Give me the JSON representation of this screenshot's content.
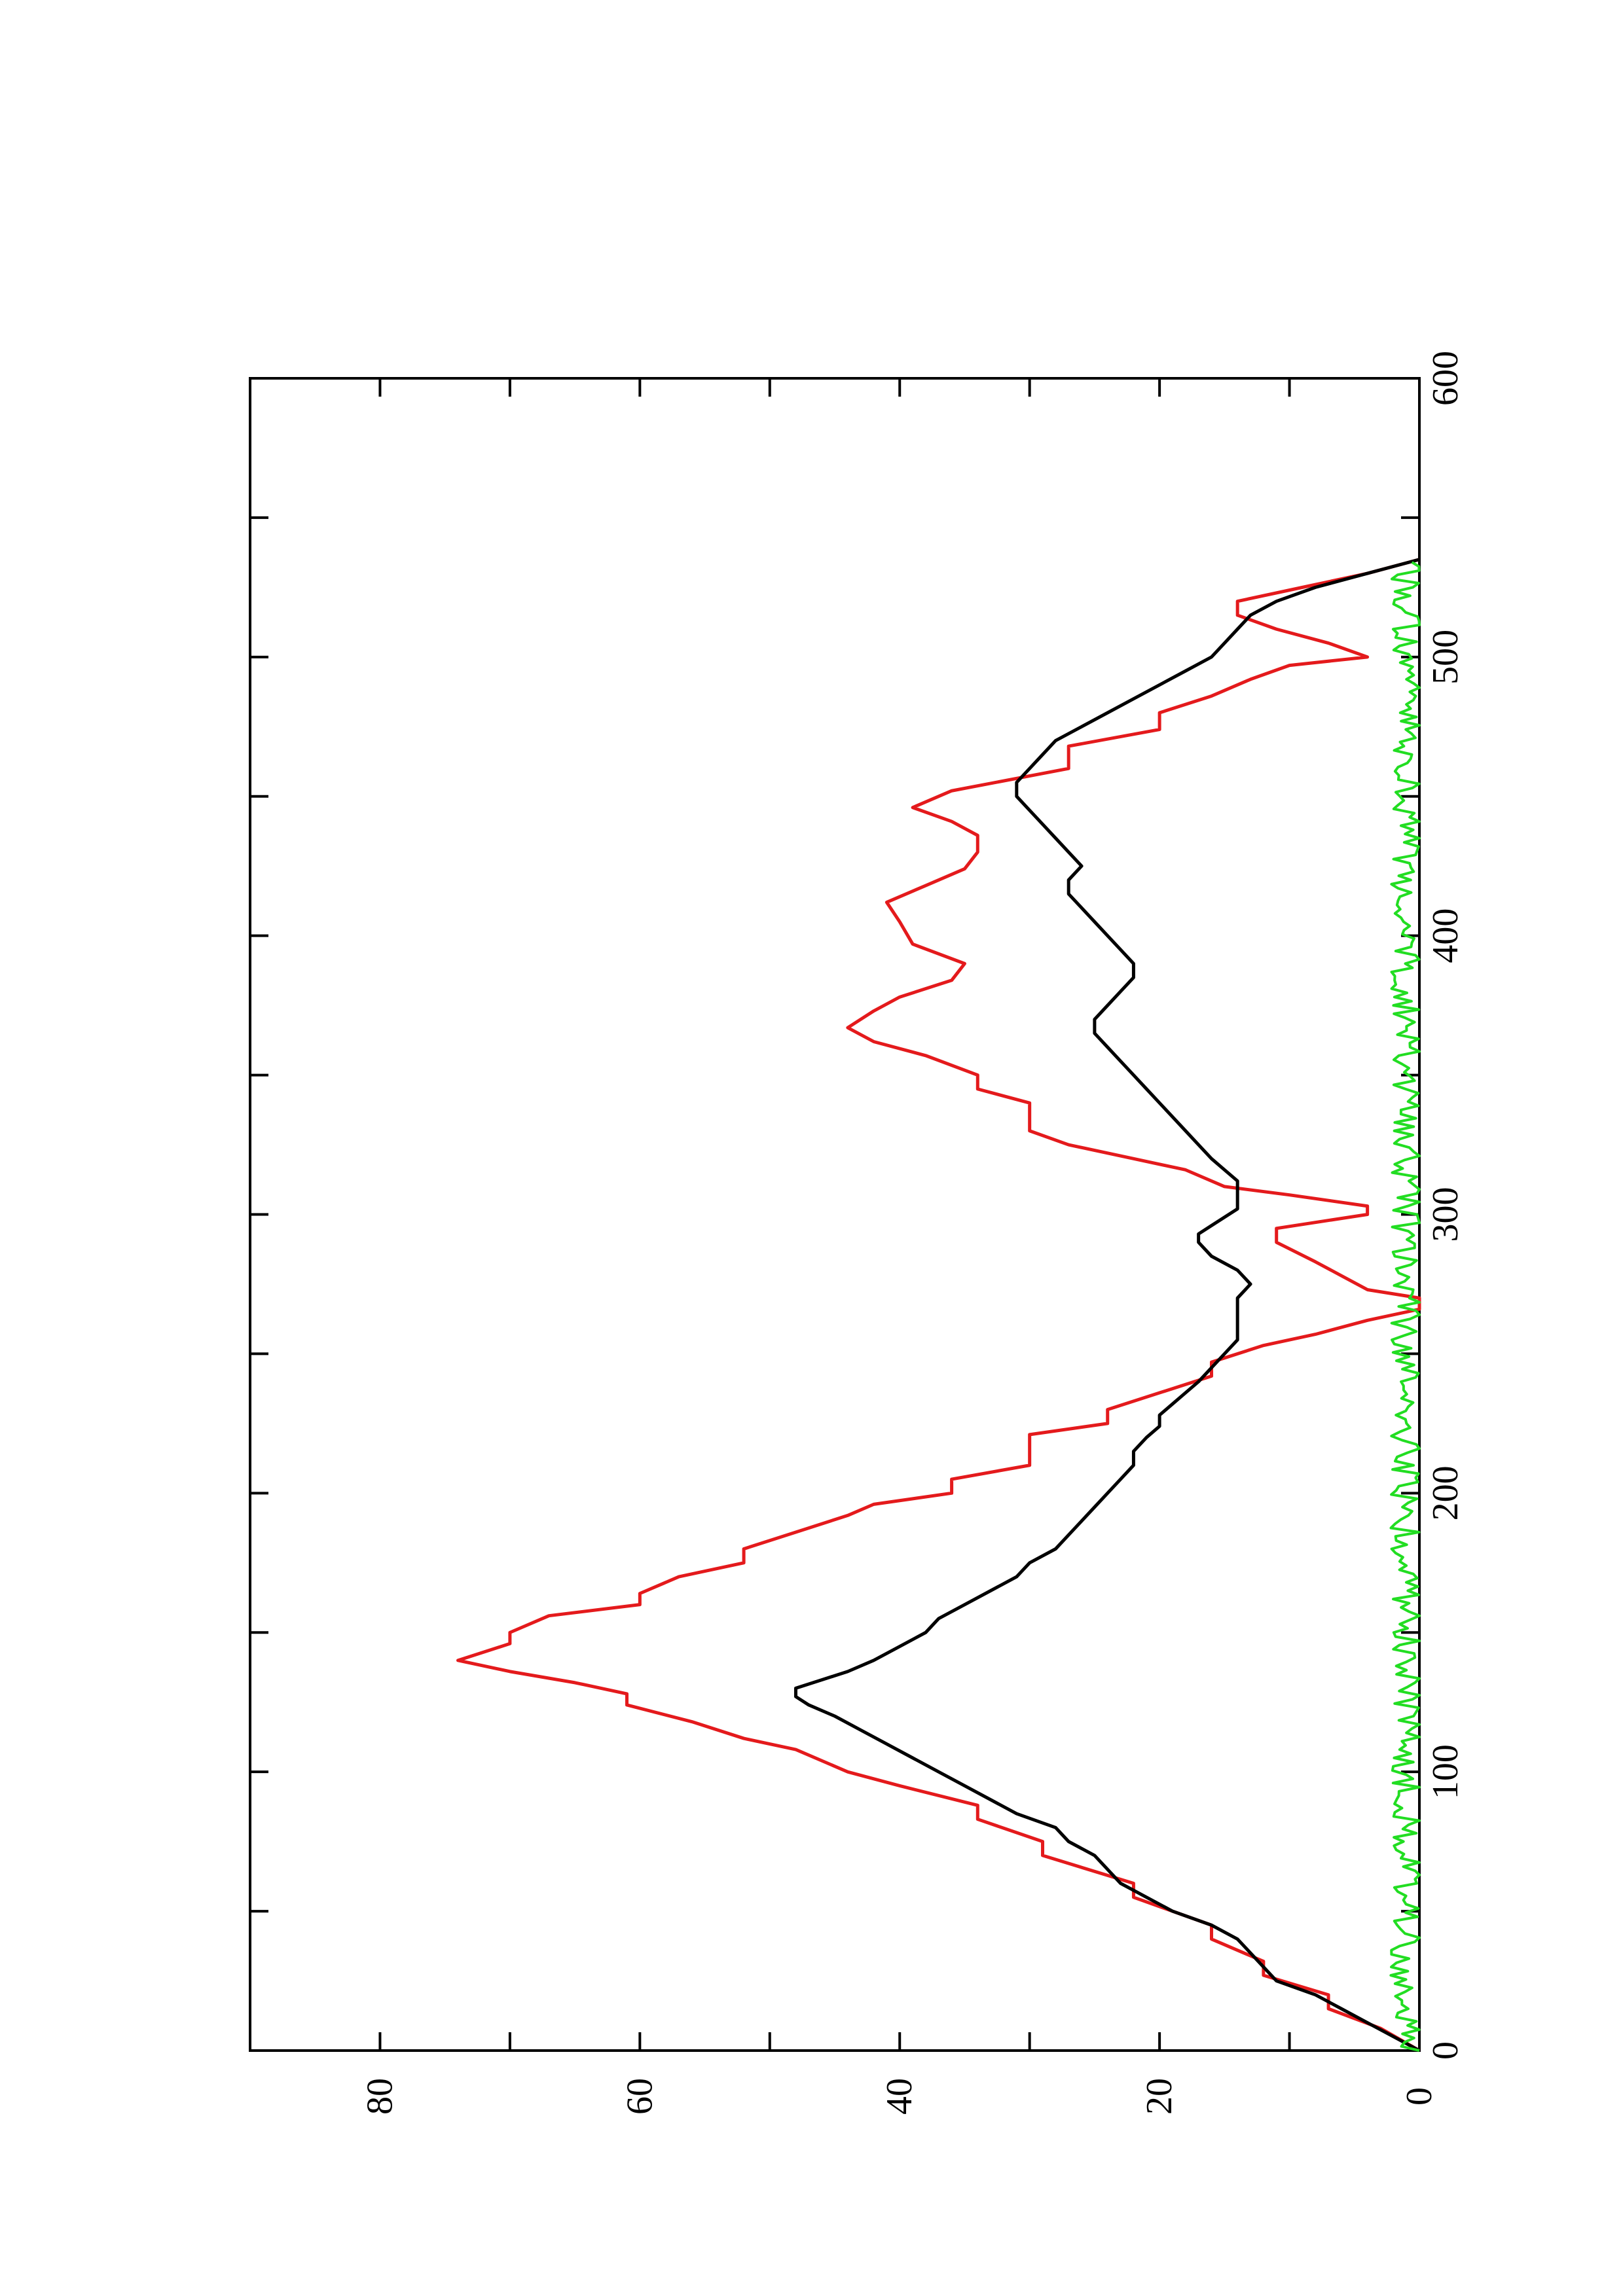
{
  "chart_data": {
    "type": "line",
    "orientation": "rotated 90° counter-clockwise (x axis runs vertically, y axis horizontally)",
    "title": "",
    "xlabel": "",
    "ylabel": "",
    "xlim": [
      0,
      600
    ],
    "ylim": [
      0,
      90
    ],
    "x_ticks": [
      0,
      100,
      200,
      300,
      400,
      500,
      600
    ],
    "x_tick_labels": [
      "0",
      "100",
      "200",
      "300",
      "400",
      "500",
      "600"
    ],
    "y_ticks": [
      0,
      20,
      40,
      60,
      80
    ],
    "y_tick_labels": [
      "0",
      "20",
      "40",
      "60",
      "80"
    ],
    "grid": false,
    "legend": "none",
    "series": [
      {
        "color": "#e41a1c",
        "style": "stepped",
        "points": [
          [
            0,
            0
          ],
          [
            8,
            3
          ],
          [
            15,
            7
          ],
          [
            20,
            7
          ],
          [
            27,
            12
          ],
          [
            32,
            12
          ],
          [
            40,
            16
          ],
          [
            45,
            16
          ],
          [
            55,
            22
          ],
          [
            60,
            22
          ],
          [
            70,
            29
          ],
          [
            75,
            29
          ],
          [
            83,
            34
          ],
          [
            88,
            34
          ],
          [
            95,
            40
          ],
          [
            100,
            44
          ],
          [
            108,
            48
          ],
          [
            112,
            52
          ],
          [
            118,
            56
          ],
          [
            124,
            61
          ],
          [
            128,
            61
          ],
          [
            132,
            65
          ],
          [
            136,
            70
          ],
          [
            140,
            74
          ],
          [
            146,
            70
          ],
          [
            150,
            70
          ],
          [
            156,
            67
          ],
          [
            160,
            60
          ],
          [
            164,
            60
          ],
          [
            170,
            57
          ],
          [
            175,
            52
          ],
          [
            180,
            52
          ],
          [
            186,
            48
          ],
          [
            192,
            44
          ],
          [
            196,
            42
          ],
          [
            200,
            36
          ],
          [
            205,
            36
          ],
          [
            210,
            30
          ],
          [
            221,
            30
          ],
          [
            225,
            24
          ],
          [
            230,
            24
          ],
          [
            236,
            20
          ],
          [
            242,
            16
          ],
          [
            247,
            16
          ],
          [
            253,
            12
          ],
          [
            257,
            8
          ],
          [
            262,
            4
          ],
          [
            266,
            0
          ],
          [
            270,
            0
          ],
          [
            273,
            4
          ],
          [
            278,
            6
          ],
          [
            283,
            8
          ],
          [
            290,
            11
          ],
          [
            295,
            11
          ],
          [
            300,
            4
          ],
          [
            303,
            4
          ],
          [
            307,
            10
          ],
          [
            310,
            15
          ],
          [
            316,
            18
          ],
          [
            320,
            22
          ],
          [
            325,
            27
          ],
          [
            330,
            30
          ],
          [
            340,
            30
          ],
          [
            345,
            34
          ],
          [
            350,
            34
          ],
          [
            357,
            38
          ],
          [
            362,
            42
          ],
          [
            367,
            44
          ],
          [
            373,
            42
          ],
          [
            378,
            40
          ],
          [
            384,
            36
          ],
          [
            390,
            35
          ],
          [
            397,
            39
          ],
          [
            405,
            40
          ],
          [
            412,
            41
          ],
          [
            418,
            38
          ],
          [
            424,
            35
          ],
          [
            430,
            34
          ],
          [
            436,
            34
          ],
          [
            441,
            36
          ],
          [
            446,
            39
          ],
          [
            452,
            36
          ],
          [
            460,
            27
          ],
          [
            468,
            27
          ],
          [
            474,
            20
          ],
          [
            480,
            20
          ],
          [
            486,
            16
          ],
          [
            492,
            13
          ],
          [
            497,
            10
          ],
          [
            500,
            4
          ],
          [
            505,
            7
          ],
          [
            510,
            11
          ],
          [
            515,
            14
          ],
          [
            520,
            14
          ],
          [
            525,
            9
          ],
          [
            530,
            4
          ],
          [
            535,
            0
          ]
        ]
      },
      {
        "color": "#000000",
        "style": "line",
        "points": [
          [
            0,
            0
          ],
          [
            5,
            2
          ],
          [
            10,
            4
          ],
          [
            15,
            6
          ],
          [
            20,
            8
          ],
          [
            25,
            11
          ],
          [
            30,
            12
          ],
          [
            35,
            13
          ],
          [
            40,
            14
          ],
          [
            45,
            16
          ],
          [
            50,
            19
          ],
          [
            55,
            21
          ],
          [
            60,
            23
          ],
          [
            65,
            24
          ],
          [
            70,
            25
          ],
          [
            75,
            27
          ],
          [
            80,
            28
          ],
          [
            85,
            31
          ],
          [
            90,
            33
          ],
          [
            95,
            35
          ],
          [
            100,
            37
          ],
          [
            105,
            39
          ],
          [
            110,
            41
          ],
          [
            115,
            43
          ],
          [
            120,
            45
          ],
          [
            124,
            47
          ],
          [
            127,
            48
          ],
          [
            130,
            48
          ],
          [
            133,
            46
          ],
          [
            136,
            44
          ],
          [
            140,
            42
          ],
          [
            145,
            40
          ],
          [
            150,
            38
          ],
          [
            155,
            37
          ],
          [
            160,
            35
          ],
          [
            165,
            33
          ],
          [
            170,
            31
          ],
          [
            175,
            30
          ],
          [
            180,
            28
          ],
          [
            185,
            27
          ],
          [
            190,
            26
          ],
          [
            195,
            25
          ],
          [
            200,
            24
          ],
          [
            205,
            23
          ],
          [
            210,
            22
          ],
          [
            215,
            22
          ],
          [
            220,
            21
          ],
          [
            224,
            20
          ],
          [
            228,
            20
          ],
          [
            232,
            19
          ],
          [
            236,
            18
          ],
          [
            240,
            17
          ],
          [
            245,
            16
          ],
          [
            250,
            15
          ],
          [
            255,
            14
          ],
          [
            260,
            14
          ],
          [
            265,
            14
          ],
          [
            270,
            14
          ],
          [
            275,
            13
          ],
          [
            280,
            14
          ],
          [
            285,
            16
          ],
          [
            290,
            17
          ],
          [
            293,
            17
          ],
          [
            296,
            16
          ],
          [
            299,
            15
          ],
          [
            302,
            14
          ],
          [
            305,
            14
          ],
          [
            308,
            14
          ],
          [
            312,
            14
          ],
          [
            316,
            15
          ],
          [
            320,
            16
          ],
          [
            325,
            17
          ],
          [
            330,
            18
          ],
          [
            335,
            19
          ],
          [
            340,
            20
          ],
          [
            345,
            21
          ],
          [
            350,
            22
          ],
          [
            355,
            23
          ],
          [
            360,
            24
          ],
          [
            365,
            25
          ],
          [
            370,
            25
          ],
          [
            375,
            24
          ],
          [
            380,
            23
          ],
          [
            385,
            22
          ],
          [
            390,
            22
          ],
          [
            395,
            23
          ],
          [
            400,
            24
          ],
          [
            405,
            25
          ],
          [
            410,
            26
          ],
          [
            415,
            27
          ],
          [
            420,
            27
          ],
          [
            425,
            26
          ],
          [
            430,
            27
          ],
          [
            435,
            28
          ],
          [
            440,
            29
          ],
          [
            445,
            30
          ],
          [
            450,
            31
          ],
          [
            455,
            31
          ],
          [
            460,
            30
          ],
          [
            465,
            29
          ],
          [
            470,
            28
          ],
          [
            475,
            26
          ],
          [
            480,
            24
          ],
          [
            485,
            22
          ],
          [
            490,
            20
          ],
          [
            495,
            18
          ],
          [
            500,
            16
          ],
          [
            505,
            15
          ],
          [
            510,
            14
          ],
          [
            515,
            13
          ],
          [
            520,
            11
          ],
          [
            525,
            8
          ],
          [
            530,
            4
          ],
          [
            535,
            0
          ]
        ]
      },
      {
        "color": "#22dd22",
        "style": "noisy",
        "points": [
          [
            0,
            0
          ],
          [
            3,
            2
          ],
          [
            6,
            1
          ],
          [
            9,
            2
          ],
          [
            12,
            1
          ],
          [
            15,
            1
          ],
          [
            18,
            2
          ],
          [
            21,
            1
          ],
          [
            24,
            1
          ],
          [
            27,
            2
          ],
          [
            30,
            1
          ],
          [
            33,
            1
          ],
          [
            36,
            1
          ],
          [
            39,
            1
          ],
          [
            42,
            1
          ],
          [
            45,
            1
          ],
          [
            50,
            1
          ],
          [
            55,
            1
          ],
          [
            60,
            1
          ],
          [
            65,
            1
          ],
          [
            70,
            1
          ],
          [
            75,
            1
          ],
          [
            80,
            1
          ],
          [
            85,
            1
          ],
          [
            90,
            1
          ],
          [
            95,
            1
          ],
          [
            100,
            1
          ],
          [
            110,
            1
          ],
          [
            120,
            1
          ],
          [
            130,
            1
          ],
          [
            140,
            1
          ],
          [
            150,
            1
          ],
          [
            160,
            1
          ],
          [
            170,
            1
          ],
          [
            180,
            1
          ],
          [
            190,
            1
          ],
          [
            200,
            1
          ],
          [
            210,
            1
          ],
          [
            220,
            1
          ],
          [
            230,
            1
          ],
          [
            240,
            1
          ],
          [
            250,
            1
          ],
          [
            260,
            1
          ],
          [
            270,
            1
          ],
          [
            280,
            1
          ],
          [
            290,
            1
          ],
          [
            300,
            1
          ],
          [
            310,
            1
          ],
          [
            320,
            1
          ],
          [
            330,
            1
          ],
          [
            340,
            1
          ],
          [
            350,
            1
          ],
          [
            360,
            1
          ],
          [
            370,
            1
          ],
          [
            380,
            1
          ],
          [
            390,
            1
          ],
          [
            400,
            1
          ],
          [
            410,
            1
          ],
          [
            420,
            1
          ],
          [
            430,
            1
          ],
          [
            440,
            1
          ],
          [
            450,
            1
          ],
          [
            460,
            1
          ],
          [
            470,
            1
          ],
          [
            480,
            1
          ],
          [
            490,
            1
          ],
          [
            500,
            1
          ],
          [
            510,
            1
          ],
          [
            520,
            1
          ],
          [
            530,
            1
          ],
          [
            535,
            1
          ]
        ]
      }
    ]
  }
}
